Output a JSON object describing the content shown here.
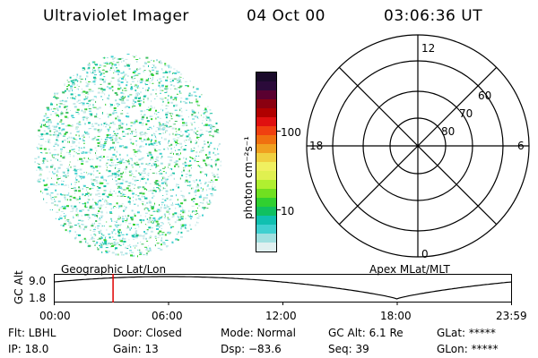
{
  "header": {
    "title": "Ultraviolet Imager",
    "date": "04 Oct 00",
    "time": "03:06:36 UT"
  },
  "colorbar": {
    "label": "photon cm⁻²s⁻¹",
    "ticks": [
      "100",
      "10"
    ],
    "colors": [
      "#1a0a2a",
      "#2b0a3a",
      "#5a0030",
      "#8a0010",
      "#b00000",
      "#e01010",
      "#f04010",
      "#f07010",
      "#f0a020",
      "#f0d040",
      "#f0f060",
      "#e0f050",
      "#b0f030",
      "#70e020",
      "#30d030",
      "#10c060",
      "#10c0b0",
      "#40d0d0",
      "#a0e0e0",
      "#e0f0f0"
    ]
  },
  "polar_plot": {
    "lat_labels": [
      "80",
      "70",
      "60"
    ],
    "mlt_labels": {
      "top": "12",
      "bottom": "0",
      "left": "18",
      "right": "6"
    }
  },
  "timeline": {
    "left_label": "Geographic Lat/Lon",
    "right_label": "Apex MLat/MLT",
    "y_axis_label": "GC Alt",
    "y_ticks": [
      "9.0",
      "1.8"
    ],
    "x_ticks": [
      "00:00",
      "06:00",
      "12:00",
      "18:00",
      "23:59"
    ],
    "marker_time": "03:06:36",
    "marker_color": "#e00000"
  },
  "info": {
    "flt": "Flt: LBHL",
    "door": "Door: Closed",
    "mode": "Mode: Normal",
    "gc_alt": "GC Alt: 6.1 Re",
    "glat": "GLat: *****",
    "ip": "IP: 18.0",
    "gain": "Gain: 13",
    "dsp": "Dsp:  −83.6",
    "seq": "Seq: 39",
    "glon": "GLon: *****"
  }
}
